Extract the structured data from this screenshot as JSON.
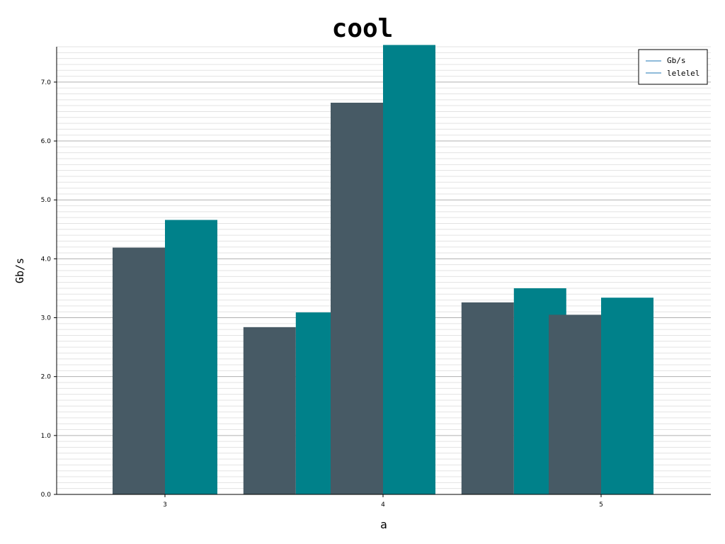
{
  "chart_data": {
    "type": "bar",
    "title": "cool",
    "xlabel": "a",
    "ylabel": "Gb/s",
    "x_ticks": [
      3,
      4,
      5
    ],
    "x_range": [
      2.5,
      5.5
    ],
    "ylim": [
      0,
      7.6
    ],
    "y_ticks": [
      0.0,
      1.0,
      2.0,
      3.0,
      4.0,
      5.0,
      6.0,
      7.0
    ],
    "y_minor_step": 0.1,
    "grid": true,
    "legend_position": "top-right",
    "x": [
      3,
      3.6,
      4,
      4.6,
      5
    ],
    "series": [
      {
        "name": "Gb/s",
        "color": "#475a65",
        "values": [
          4.19,
          2.84,
          6.65,
          3.26,
          3.05
        ]
      },
      {
        "name": "lelelel",
        "color": "#00818a",
        "values": [
          4.66,
          3.09,
          7.63,
          3.5,
          3.34
        ]
      }
    ],
    "legend_line_color": "#1f77b4"
  }
}
